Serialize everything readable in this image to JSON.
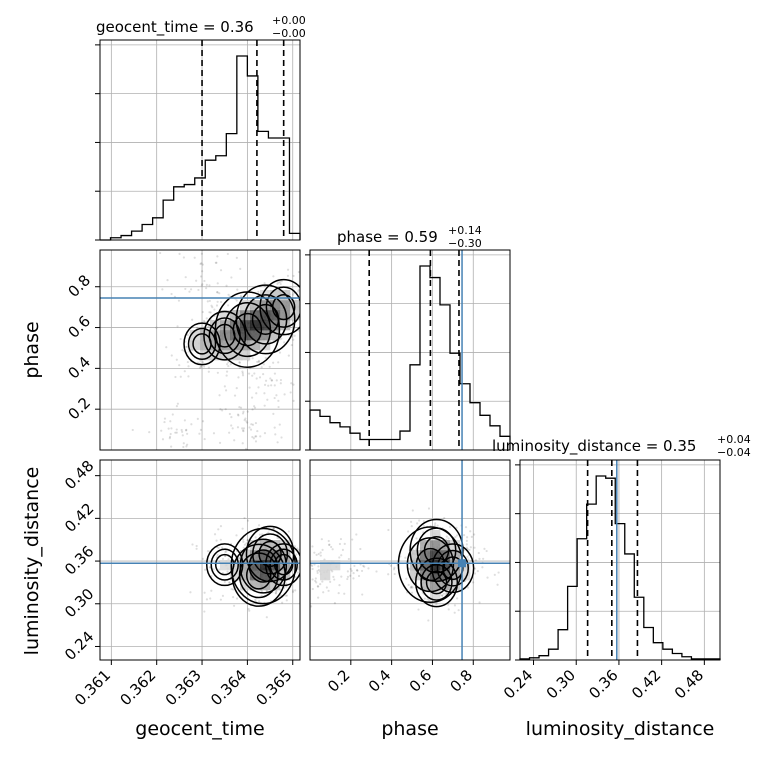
{
  "chart_data": {
    "type": "corner",
    "parameters": [
      "geocent_time",
      "phase",
      "luminosity_distance"
    ],
    "truths": {
      "phase": 0.745,
      "luminosity_distance": 0.357
    },
    "colors": {
      "truth": "#4682b4",
      "histogram": "#000000",
      "grid": "#b0b0b0",
      "density": "#000000"
    },
    "grid": true,
    "panels": {
      "geocent_time": {
        "title": "geocent_time = 0.36",
        "title_plus": "+0.00",
        "title_minus": "−0.00",
        "range": [
          0.36075,
          0.36516
        ],
        "ticks": [
          {
            "value": 0.361,
            "label": "0.361"
          },
          {
            "value": 0.362,
            "label": "0.362"
          },
          {
            "value": 0.363,
            "label": "0.363"
          },
          {
            "value": 0.364,
            "label": "0.364"
          },
          {
            "value": 0.365,
            "label": "0.365"
          }
        ],
        "quantiles": [
          0.363,
          0.36421,
          0.3648
        ],
        "hist_counts": [
          0,
          1,
          2,
          4,
          7,
          10,
          18,
          24,
          25,
          28,
          36,
          38,
          48,
          83,
          74,
          49,
          46,
          46,
          3
        ]
      },
      "phase": {
        "title": "phase = 0.59",
        "title_plus": "+0.14",
        "title_minus": "−0.30",
        "range": [
          0.0,
          0.98
        ],
        "ticks": [
          {
            "value": 0.2,
            "label": "0.2"
          },
          {
            "value": 0.4,
            "label": "0.4"
          },
          {
            "value": 0.6,
            "label": "0.6"
          },
          {
            "value": 0.8,
            "label": "0.8"
          }
        ],
        "quantiles": [
          0.29,
          0.59,
          0.73
        ],
        "hist_counts": [
          38,
          32,
          26,
          22,
          16,
          10,
          10,
          10,
          10,
          18,
          81,
          175,
          164,
          138,
          92,
          63,
          45,
          33,
          23,
          13
        ]
      },
      "luminosity_distance": {
        "title": "luminosity_distance = 0.35",
        "title_plus": "+0.04",
        "title_minus": "−0.04",
        "range": [
          0.221,
          0.502
        ],
        "ticks": [
          {
            "value": 0.24,
            "label": "0.24"
          },
          {
            "value": 0.3,
            "label": "0.30"
          },
          {
            "value": 0.36,
            "label": "0.36"
          },
          {
            "value": 0.42,
            "label": "0.42"
          },
          {
            "value": 0.48,
            "label": "0.48"
          }
        ],
        "quantiles": [
          0.316,
          0.35,
          0.386
        ],
        "hist_counts": [
          1,
          2,
          4,
          10,
          28,
          68,
          112,
          144,
          170,
          168,
          126,
          98,
          58,
          30,
          16,
          10,
          6,
          3,
          1,
          1,
          1
        ]
      }
    },
    "pair_panels": [
      {
        "x": "geocent_time",
        "y": "phase",
        "density_centers": [
          {
            "x": 0.364,
            "y": 0.59,
            "w": 1.0
          },
          {
            "x": 0.3644,
            "y": 0.64,
            "w": 0.9
          },
          {
            "x": 0.3648,
            "y": 0.7,
            "w": 0.7
          },
          {
            "x": 0.3635,
            "y": 0.56,
            "w": 0.6
          },
          {
            "x": 0.363,
            "y": 0.52,
            "w": 0.5
          },
          {
            "x": 0.3638,
            "y": 0.4,
            "w": 0.3
          },
          {
            "x": 0.3645,
            "y": 0.3,
            "w": 0.25
          },
          {
            "x": 0.364,
            "y": 0.11,
            "w": 0.35
          },
          {
            "x": 0.3625,
            "y": 0.08,
            "w": 0.3
          },
          {
            "x": 0.363,
            "y": 0.88,
            "w": 0.3
          }
        ]
      },
      {
        "x": "geocent_time",
        "y": "luminosity_distance",
        "density_centers": [
          {
            "x": 0.36435,
            "y": 0.353,
            "w": 1.0
          },
          {
            "x": 0.36425,
            "y": 0.34,
            "w": 0.8
          },
          {
            "x": 0.3645,
            "y": 0.37,
            "w": 0.7
          },
          {
            "x": 0.3635,
            "y": 0.355,
            "w": 0.5
          },
          {
            "x": 0.3648,
            "y": 0.355,
            "w": 0.5
          }
        ]
      },
      {
        "x": "phase",
        "y": "luminosity_distance",
        "density_centers": [
          {
            "x": 0.59,
            "y": 0.355,
            "w": 1.0
          },
          {
            "x": 0.62,
            "y": 0.375,
            "w": 0.8
          },
          {
            "x": 0.7,
            "y": 0.35,
            "w": 0.6
          },
          {
            "x": 0.05,
            "y": 0.345,
            "w": 0.45
          },
          {
            "x": 0.15,
            "y": 0.355,
            "w": 0.3
          },
          {
            "x": 0.62,
            "y": 0.33,
            "w": 0.6
          }
        ]
      }
    ]
  }
}
